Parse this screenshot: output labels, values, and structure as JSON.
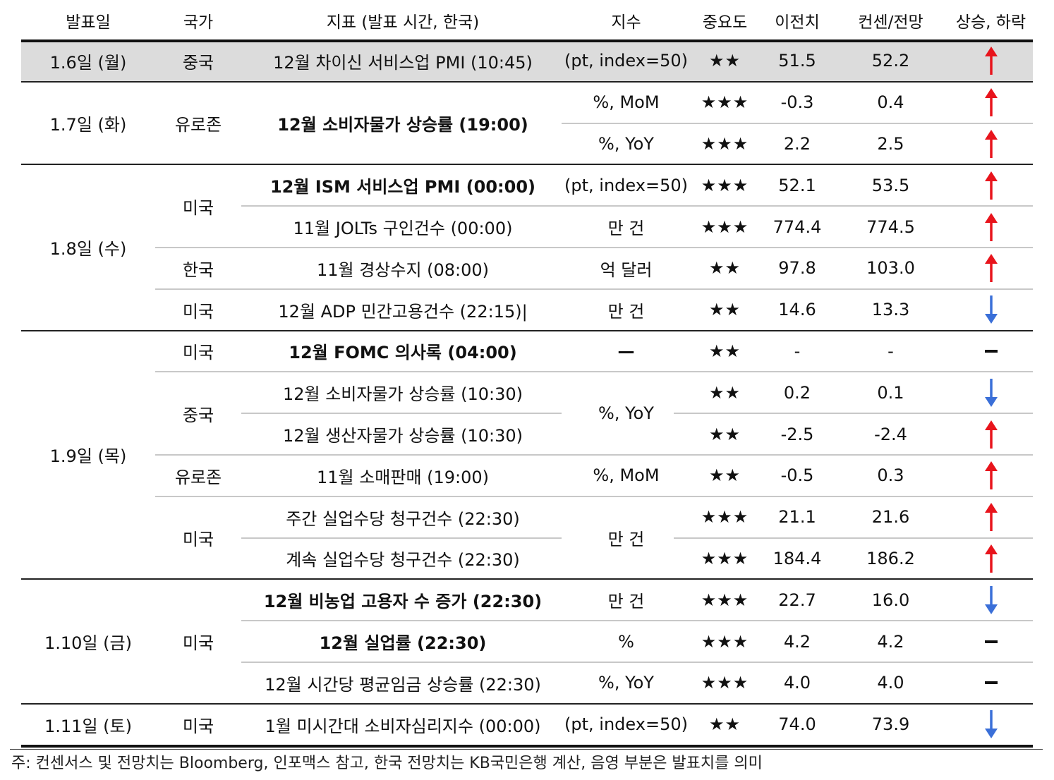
{
  "headers": {
    "date": "발표일",
    "country": "국가",
    "indicator": "지표 (발표 시간, 한국)",
    "unit": "지수",
    "importance": "중요도",
    "previous": "이전치",
    "consensus": "컨센/전망",
    "direction": "상승, 하락"
  },
  "dates": [
    "1.6일 (월)",
    "1.7일 (화)",
    "1.8일 (수)",
    "1.9일 (목)",
    "1.10일 (금)",
    "1.11일 (토)"
  ],
  "countries": [
    "중국",
    "유로존",
    "미국",
    "한국",
    "미국",
    "미국",
    "중국",
    "유로존",
    "미국",
    "미국",
    "미국"
  ],
  "units": [
    "(pt, index=50)",
    "%, MoM",
    "%, YoY",
    "(pt, index=50)",
    "만 건",
    "억 달러",
    "만 건",
    "—",
    "%, YoY",
    "%, MoM",
    "만 건",
    "만 건",
    "%",
    "%, YoY",
    "(pt, index=50)"
  ],
  "rows": [
    {
      "indicator": "12월 차이신 서비스업 PMI (10:45)",
      "bold": false,
      "importance": "★★",
      "previous": "51.5",
      "consensus": "52.2",
      "direction": "up"
    },
    {
      "indicator": "12월 소비자물가 상승률 (19:00)",
      "bold": true,
      "importance": "★★★",
      "previous": "-0.3",
      "consensus": "0.4",
      "direction": "up"
    },
    {
      "indicator": "",
      "bold": false,
      "importance": "★★★",
      "previous": "2.2",
      "consensus": "2.5",
      "direction": "up"
    },
    {
      "indicator": "12월 ISM 서비스업 PMI (00:00)",
      "bold": true,
      "importance": "★★★",
      "previous": "52.1",
      "consensus": "53.5",
      "direction": "up"
    },
    {
      "indicator": "11월 JOLTs 구인건수 (00:00)",
      "bold": false,
      "importance": "★★★",
      "previous": "774.4",
      "consensus": "774.5",
      "direction": "up"
    },
    {
      "indicator": "11월 경상수지 (08:00)",
      "bold": false,
      "importance": "★★",
      "previous": "97.8",
      "consensus": "103.0",
      "direction": "up"
    },
    {
      "indicator": "12월 ADP 민간고용건수 (22:15)|",
      "bold": false,
      "importance": "★★",
      "previous": "14.6",
      "consensus": "13.3",
      "direction": "down"
    },
    {
      "indicator": "12월 FOMC 의사록 (04:00)",
      "bold": true,
      "importance": "★★",
      "previous": "-",
      "consensus": "-",
      "direction": "flat"
    },
    {
      "indicator": "12월 소비자물가 상승률 (10:30)",
      "bold": false,
      "importance": "★★",
      "previous": "0.2",
      "consensus": "0.1",
      "direction": "down"
    },
    {
      "indicator": "12월 생산자물가 상승률 (10:30)",
      "bold": false,
      "importance": "★★",
      "previous": "-2.5",
      "consensus": "-2.4",
      "direction": "up"
    },
    {
      "indicator": "11월 소매판매 (19:00)",
      "bold": false,
      "importance": "★★",
      "previous": "-0.5",
      "consensus": "0.3",
      "direction": "up"
    },
    {
      "indicator": "주간 실업수당 청구건수 (22:30)",
      "bold": false,
      "importance": "★★★",
      "previous": "21.1",
      "consensus": "21.6",
      "direction": "up"
    },
    {
      "indicator": "계속 실업수당 청구건수 (22:30)",
      "bold": false,
      "importance": "★★★",
      "previous": "184.4",
      "consensus": "186.2",
      "direction": "up"
    },
    {
      "indicator": "12월 비농업 고용자 수 증가 (22:30)",
      "bold": true,
      "importance": "★★★",
      "previous": "22.7",
      "consensus": "16.0",
      "direction": "down"
    },
    {
      "indicator": "12월 실업률 (22:30)",
      "bold": true,
      "importance": "★★★",
      "previous": "4.2",
      "consensus": "4.2",
      "direction": "flat"
    },
    {
      "indicator": "12월 시간당 평균임금 상승률 (22:30)",
      "bold": false,
      "importance": "★★★",
      "previous": "4.0",
      "consensus": "4.0",
      "direction": "flat"
    },
    {
      "indicator": "1월 미시간대 소비자심리지수 (00:00)",
      "bold": false,
      "importance": "★★",
      "previous": "74.0",
      "consensus": "73.9",
      "direction": "down"
    }
  ],
  "footnote": "주: 컨센서스 및 전망치는 Bloomberg, 인포맥스 참고, 한국 전망치는 KB국민은행 계산, 음영 부분은 발표치를 의미",
  "colors": {
    "up": "#e8141c",
    "down": "#3a6fd8",
    "flat": "#111111",
    "shade": "#dcdcdc"
  }
}
